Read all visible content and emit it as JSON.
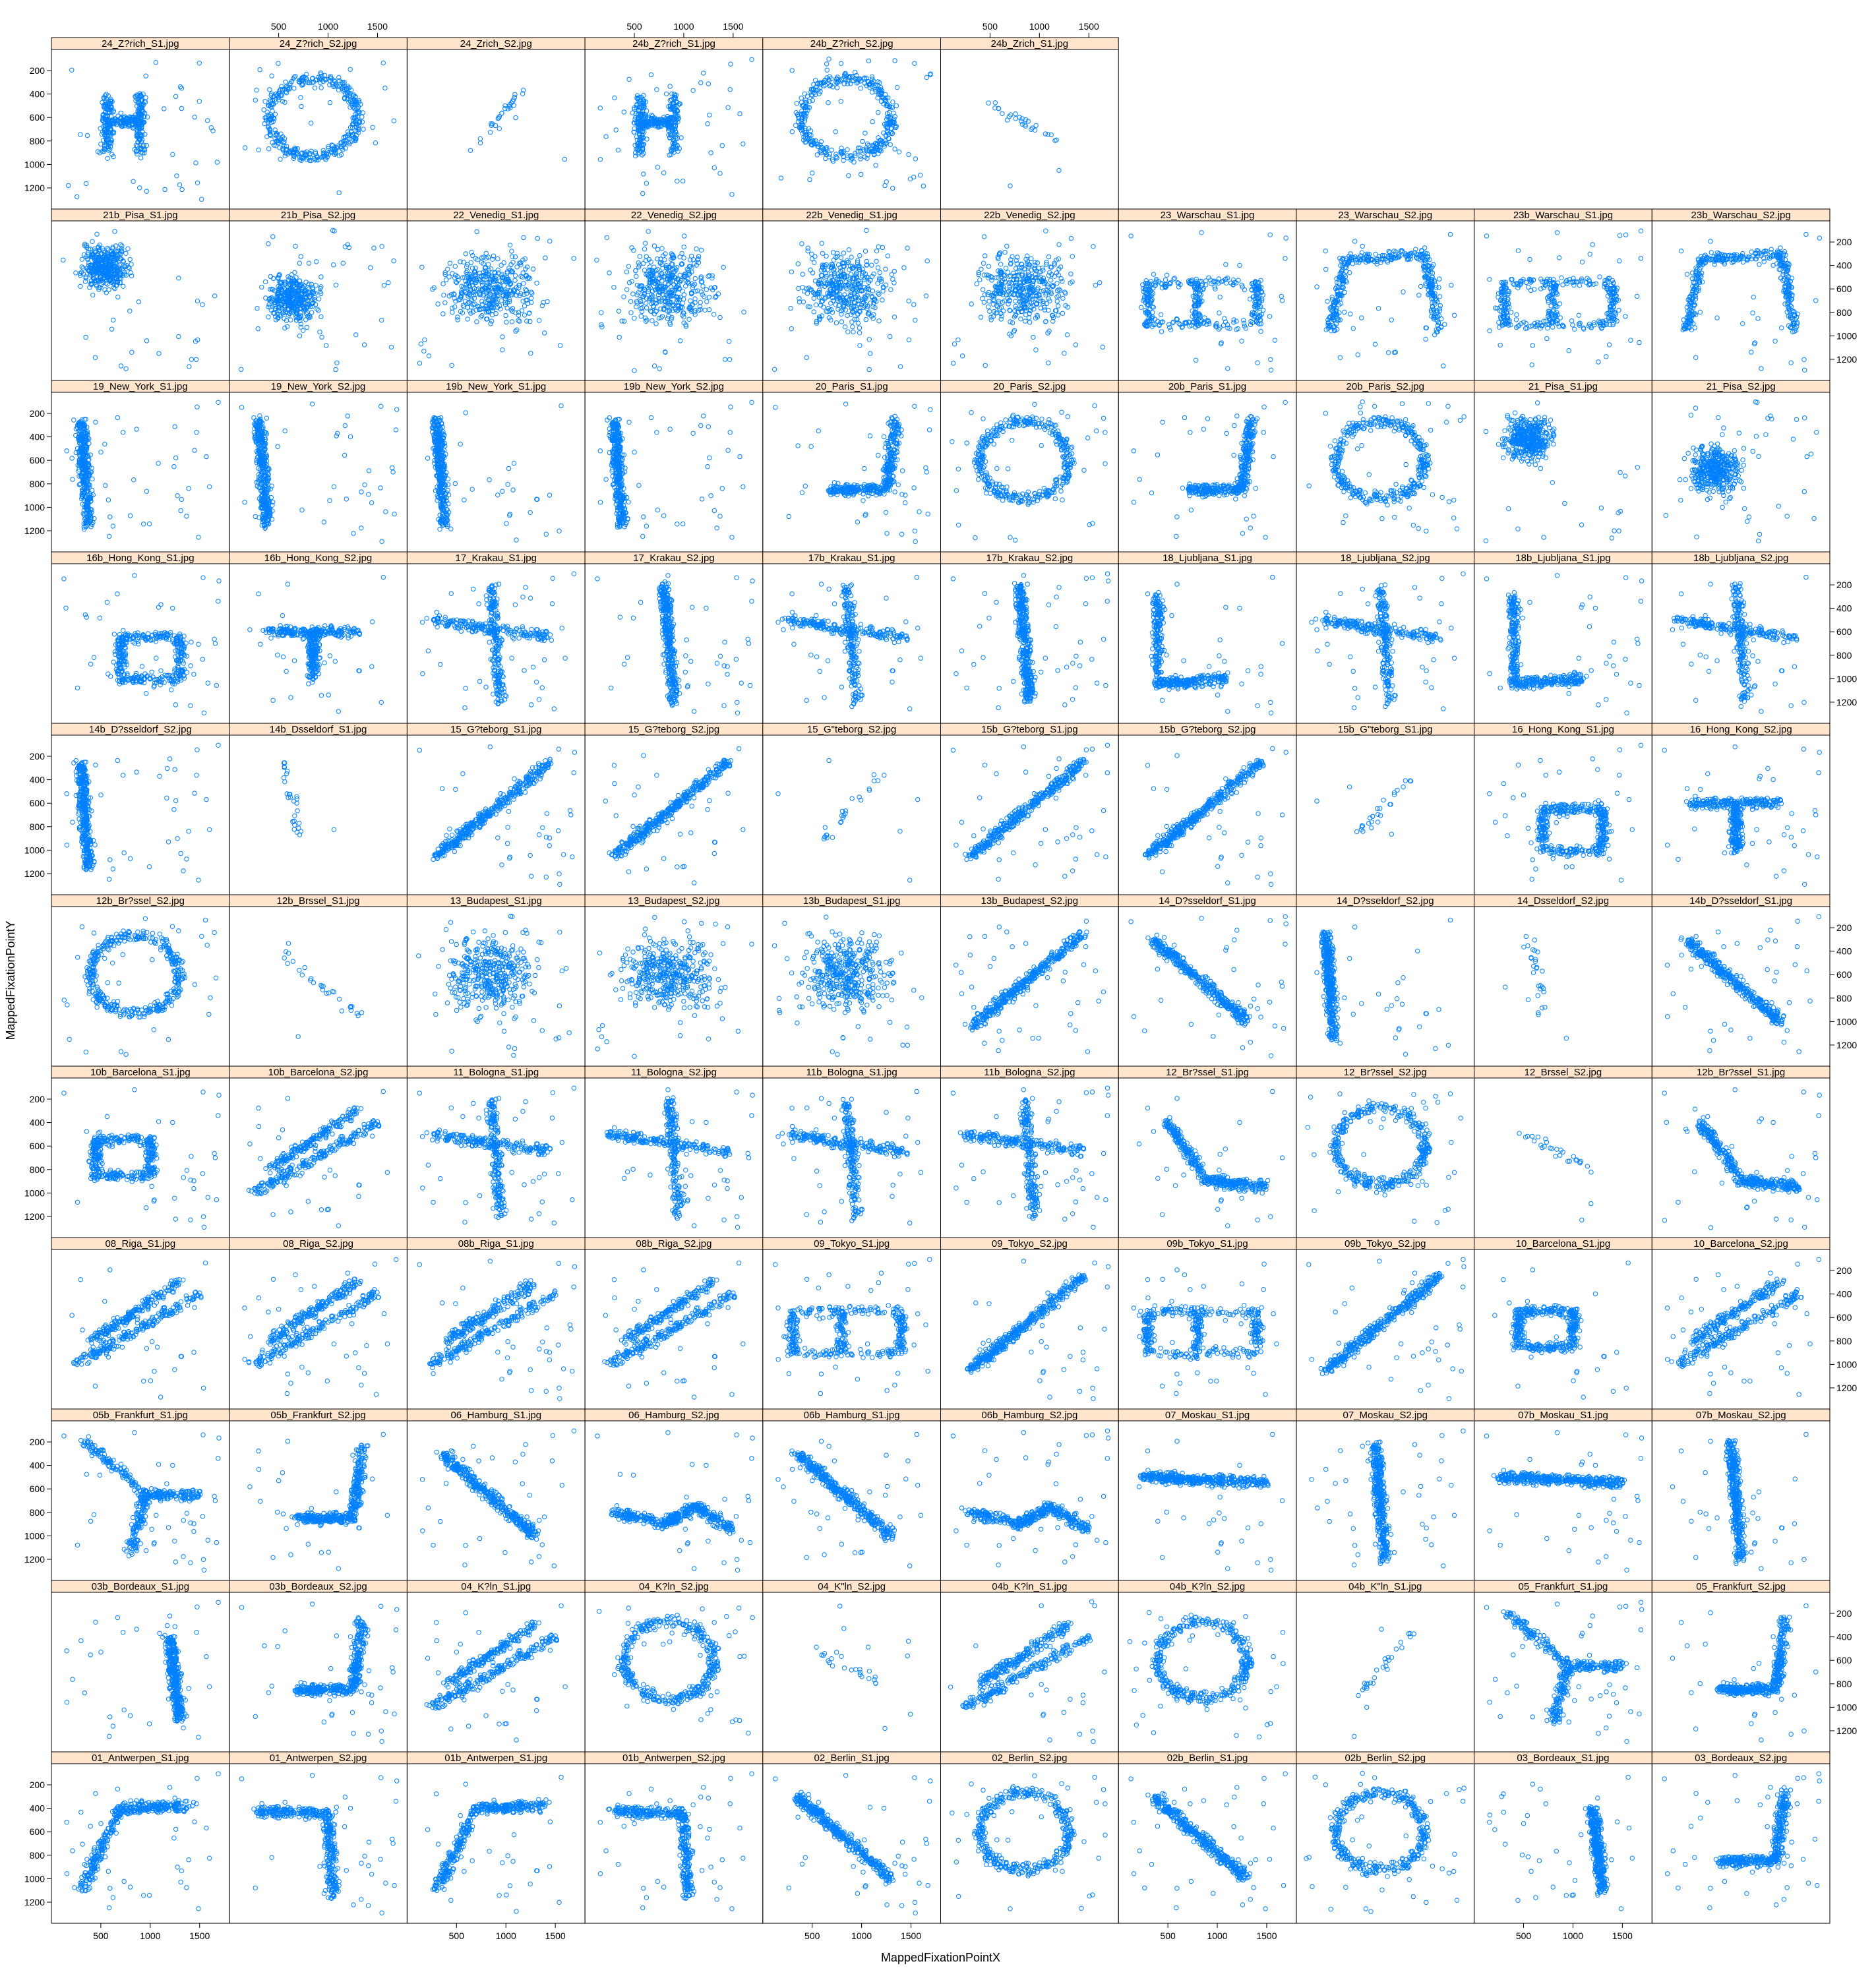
{
  "chart_data": {
    "type": "scatter",
    "layout": "lattice",
    "xlabel": "MappedFixationPointX",
    "ylabel": "MappedFixationPointY",
    "xlim": [
      0,
      1800
    ],
    "ylim": [
      1380,
      20
    ],
    "x_ticks": [
      500,
      1000,
      1500
    ],
    "y_ticks": [
      200,
      400,
      600,
      800,
      1000,
      1200
    ],
    "y_reversed": true,
    "grid": false,
    "legend": "none",
    "point_marker": "open circle",
    "colors": {
      "points": "#0080ff",
      "strip_bg": "#ffe5cc",
      "frame": "#000000"
    },
    "rows": [
      {
        "panels": [
          {
            "title": "24_Z?rich_S1.jpg",
            "shape": "H"
          },
          {
            "title": "24_Z?rich_S2.jpg",
            "shape": "ring"
          },
          {
            "title": "24_Zrich_S2.jpg",
            "shape": "sparse-diag"
          },
          {
            "title": "24b_Z?rich_S1.jpg",
            "shape": "H"
          },
          {
            "title": "24b_Z?rich_S2.jpg",
            "shape": "ring"
          },
          {
            "title": "24b_Zrich_S1.jpg",
            "shape": "sparse"
          }
        ]
      },
      {
        "panels": [
          {
            "title": "21b_Pisa_S1.jpg",
            "shape": "blob-top-left"
          },
          {
            "title": "21b_Pisa_S2.jpg",
            "shape": "blob-left"
          },
          {
            "title": "22_Venedig_S1.jpg",
            "shape": "scatter-wide"
          },
          {
            "title": "22_Venedig_S2.jpg",
            "shape": "scatter-wide"
          },
          {
            "title": "22b_Venedig_S1.jpg",
            "shape": "scatter-wide"
          },
          {
            "title": "22b_Venedig_S2.jpg",
            "shape": "scatter-wide"
          },
          {
            "title": "23_Warschau_S1.jpg",
            "shape": "box"
          },
          {
            "title": "23_Warschau_S2.jpg",
            "shape": "arch"
          },
          {
            "title": "23b_Warschau_S1.jpg",
            "shape": "box"
          },
          {
            "title": "23b_Warschau_S2.jpg",
            "shape": "arch"
          }
        ]
      },
      {
        "panels": [
          {
            "title": "19_New_York_S1.jpg",
            "shape": "vertical-left"
          },
          {
            "title": "19_New_York_S2.jpg",
            "shape": "vertical-left"
          },
          {
            "title": "19b_New_York_S1.jpg",
            "shape": "vertical-left"
          },
          {
            "title": "19b_New_York_S2.jpg",
            "shape": "vertical-left"
          },
          {
            "title": "20_Paris_S1.jpg",
            "shape": "J"
          },
          {
            "title": "20_Paris_S2.jpg",
            "shape": "ring"
          },
          {
            "title": "20b_Paris_S1.jpg",
            "shape": "J"
          },
          {
            "title": "20b_Paris_S2.jpg",
            "shape": "ring"
          },
          {
            "title": "21_Pisa_S1.jpg",
            "shape": "blob-top-left"
          },
          {
            "title": "21_Pisa_S2.jpg",
            "shape": "blob-left"
          }
        ]
      },
      {
        "panels": [
          {
            "title": "16b_Hong_Kong_S1.jpg",
            "shape": "box-low"
          },
          {
            "title": "16b_Hong_Kong_S2.jpg",
            "shape": "T"
          },
          {
            "title": "17_Krakau_S1.jpg",
            "shape": "cross"
          },
          {
            "title": "17_Krakau_S2.jpg",
            "shape": "vertical-center"
          },
          {
            "title": "17b_Krakau_S1.jpg",
            "shape": "cross"
          },
          {
            "title": "17b_Krakau_S2.jpg",
            "shape": "vertical-center"
          },
          {
            "title": "18_Ljubljana_S1.jpg",
            "shape": "L-left"
          },
          {
            "title": "18_Ljubljana_S2.jpg",
            "shape": "cross"
          },
          {
            "title": "18b_Ljubljana_S1.jpg",
            "shape": "L-left"
          },
          {
            "title": "18b_Ljubljana_S2.jpg",
            "shape": "cross"
          }
        ]
      },
      {
        "panels": [
          {
            "title": "14b_D?sseldorf_S2.jpg",
            "shape": "vertical-left"
          },
          {
            "title": "14b_Dsseldorf_S1.jpg",
            "shape": "sparse-vertical"
          },
          {
            "title": "15_G?teborg_S1.jpg",
            "shape": "diag-up"
          },
          {
            "title": "15_G?teborg_S2.jpg",
            "shape": "diag-up"
          },
          {
            "title": "15_G\"teborg_S2.jpg",
            "shape": "sparse-diag"
          },
          {
            "title": "15b_G?teborg_S1.jpg",
            "shape": "diag-up"
          },
          {
            "title": "15b_G?teborg_S2.jpg",
            "shape": "diag-up"
          },
          {
            "title": "15b_G\"teborg_S1.jpg",
            "shape": "sparse-diag"
          },
          {
            "title": "16_Hong_Kong_S1.jpg",
            "shape": "box-low"
          },
          {
            "title": "16_Hong_Kong_S2.jpg",
            "shape": "T"
          }
        ]
      },
      {
        "panels": [
          {
            "title": "12b_Br?ssel_S2.jpg",
            "shape": "ring"
          },
          {
            "title": "12b_Brssel_S1.jpg",
            "shape": "sparse-diag-down"
          },
          {
            "title": "13_Budapest_S1.jpg",
            "shape": "scatter-wide"
          },
          {
            "title": "13_Budapest_S2.jpg",
            "shape": "scatter-wide"
          },
          {
            "title": "13b_Budapest_S1.jpg",
            "shape": "scatter-wide"
          },
          {
            "title": "13b_Budapest_S2.jpg",
            "shape": "diag-up"
          },
          {
            "title": "14_D?sseldorf_S1.jpg",
            "shape": "diag-down"
          },
          {
            "title": "14_D?sseldorf_S2.jpg",
            "shape": "vertical-left"
          },
          {
            "title": "14_Dsseldorf_S2.jpg",
            "shape": "sparse-vertical"
          },
          {
            "title": "14b_D?sseldorf_S1.jpg",
            "shape": "diag-down"
          }
        ]
      },
      {
        "panels": [
          {
            "title": "10b_Barcelona_S1.jpg",
            "shape": "box-small"
          },
          {
            "title": "10b_Barcelona_S2.jpg",
            "shape": "band-rising"
          },
          {
            "title": "11_Bologna_S1.jpg",
            "shape": "cross"
          },
          {
            "title": "11_Bologna_S2.jpg",
            "shape": "cross"
          },
          {
            "title": "11b_Bologna_S1.jpg",
            "shape": "cross"
          },
          {
            "title": "11b_Bologna_S2.jpg",
            "shape": "cross"
          },
          {
            "title": "12_Br?ssel_S1.jpg",
            "shape": "L-down"
          },
          {
            "title": "12_Br?ssel_S2.jpg",
            "shape": "ring"
          },
          {
            "title": "12_Brssel_S2.jpg",
            "shape": "sparse"
          },
          {
            "title": "12b_Br?ssel_S1.jpg",
            "shape": "L-down"
          }
        ]
      },
      {
        "panels": [
          {
            "title": "08_Riga_S1.jpg",
            "shape": "band-rising"
          },
          {
            "title": "08_Riga_S2.jpg",
            "shape": "band-rising"
          },
          {
            "title": "08b_Riga_S1.jpg",
            "shape": "band-rising"
          },
          {
            "title": "08b_Riga_S2.jpg",
            "shape": "band-rising"
          },
          {
            "title": "09_Tokyo_S1.jpg",
            "shape": "box"
          },
          {
            "title": "09_Tokyo_S2.jpg",
            "shape": "diag-up"
          },
          {
            "title": "09b_Tokyo_S1.jpg",
            "shape": "box"
          },
          {
            "title": "09b_Tokyo_S2.jpg",
            "shape": "diag-up"
          },
          {
            "title": "10_Barcelona_S1.jpg",
            "shape": "box-small"
          },
          {
            "title": "10_Barcelona_S2.jpg",
            "shape": "band-rising"
          }
        ]
      },
      {
        "panels": [
          {
            "title": "05b_Frankfurt_S1.jpg",
            "shape": "Y"
          },
          {
            "title": "05b_Frankfurt_S2.jpg",
            "shape": "J"
          },
          {
            "title": "06_Hamburg_S1.jpg",
            "shape": "diag-down"
          },
          {
            "title": "06_Hamburg_S2.jpg",
            "shape": "wave"
          },
          {
            "title": "06b_Hamburg_S1.jpg",
            "shape": "diag-down"
          },
          {
            "title": "06b_Hamburg_S2.jpg",
            "shape": "wave"
          },
          {
            "title": "07_Moskau_S1.jpg",
            "shape": "band-horizontal"
          },
          {
            "title": "07_Moskau_S2.jpg",
            "shape": "vertical-center"
          },
          {
            "title": "07b_Moskau_S1.jpg",
            "shape": "band-horizontal"
          },
          {
            "title": "07b_Moskau_S2.jpg",
            "shape": "vertical-center"
          }
        ]
      },
      {
        "panels": [
          {
            "title": "03b_Bordeaux_S1.jpg",
            "shape": "vertical-right"
          },
          {
            "title": "03b_Bordeaux_S2.jpg",
            "shape": "J"
          },
          {
            "title": "04_K?ln_S1.jpg",
            "shape": "band-rising"
          },
          {
            "title": "04_K?ln_S2.jpg",
            "shape": "ring"
          },
          {
            "title": "04_K\"ln_S2.jpg",
            "shape": "sparse"
          },
          {
            "title": "04b_K?ln_S1.jpg",
            "shape": "band-rising"
          },
          {
            "title": "04b_K?ln_S2.jpg",
            "shape": "ring"
          },
          {
            "title": "04b_K\"ln_S1.jpg",
            "shape": "sparse-diag"
          },
          {
            "title": "05_Frankfurt_S1.jpg",
            "shape": "Y"
          },
          {
            "title": "05_Frankfurt_S2.jpg",
            "shape": "J"
          }
        ]
      },
      {
        "panels": [
          {
            "title": "01_Antwerpen_S1.jpg",
            "shape": "L-up"
          },
          {
            "title": "01_Antwerpen_S2.jpg",
            "shape": "L-corner"
          },
          {
            "title": "01b_Antwerpen_S1.jpg",
            "shape": "L-up"
          },
          {
            "title": "01b_Antwerpen_S2.jpg",
            "shape": "L-corner"
          },
          {
            "title": "02_Berlin_S1.jpg",
            "shape": "diag-down"
          },
          {
            "title": "02_Berlin_S2.jpg",
            "shape": "ring"
          },
          {
            "title": "02b_Berlin_S1.jpg",
            "shape": "diag-down"
          },
          {
            "title": "02b_Berlin_S2.jpg",
            "shape": "ring"
          },
          {
            "title": "03_Bordeaux_S1.jpg",
            "shape": "vertical-right"
          },
          {
            "title": "03_Bordeaux_S2.jpg",
            "shape": "J"
          }
        ]
      }
    ]
  }
}
